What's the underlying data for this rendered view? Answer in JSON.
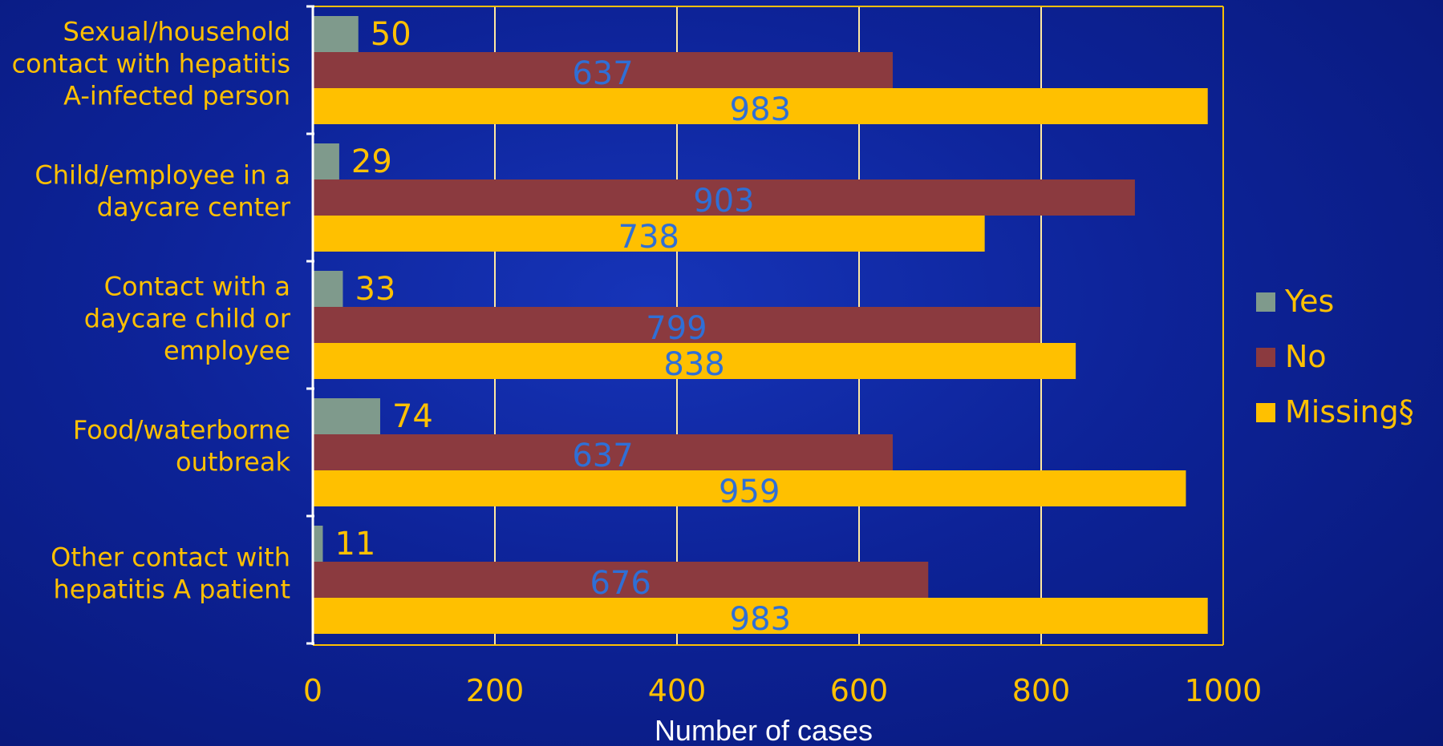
{
  "colors": {
    "yes": "#7f9a8c",
    "no": "#8b3a3f",
    "missing": "#ffc000",
    "plot_border": "#ffc000",
    "gridline": "#ffe9a0",
    "axis": "#ffffff",
    "category_text": "#ffc000",
    "outside_label": "#ffc000",
    "inside_label": "#2f6fd6"
  },
  "chart_data": {
    "type": "bar",
    "orientation": "horizontal",
    "categories": [
      [
        "Sexual/household",
        "contact with hepatitis",
        "A-infected person"
      ],
      [
        "Child/employee in a",
        "daycare center"
      ],
      [
        "Contact with a",
        "daycare child or",
        "employee"
      ],
      [
        "Food/waterborne",
        "outbreak"
      ],
      [
        "Other contact with",
        "hepatitis A patient"
      ]
    ],
    "series": [
      {
        "name": "Yes",
        "color": "#7f9a8c",
        "values": [
          50,
          29,
          33,
          74,
          11
        ]
      },
      {
        "name": "No",
        "color": "#8b3a3f",
        "values": [
          637,
          903,
          799,
          637,
          676
        ]
      },
      {
        "name": "Missing§",
        "color": "#ffc000",
        "values": [
          983,
          738,
          838,
          959,
          983
        ]
      }
    ],
    "xlabel": "Number of cases",
    "xlim": [
      0,
      1000
    ],
    "xticks": [
      0,
      200,
      400,
      600,
      800,
      1000
    ],
    "grid": true,
    "legend_position": "right"
  }
}
